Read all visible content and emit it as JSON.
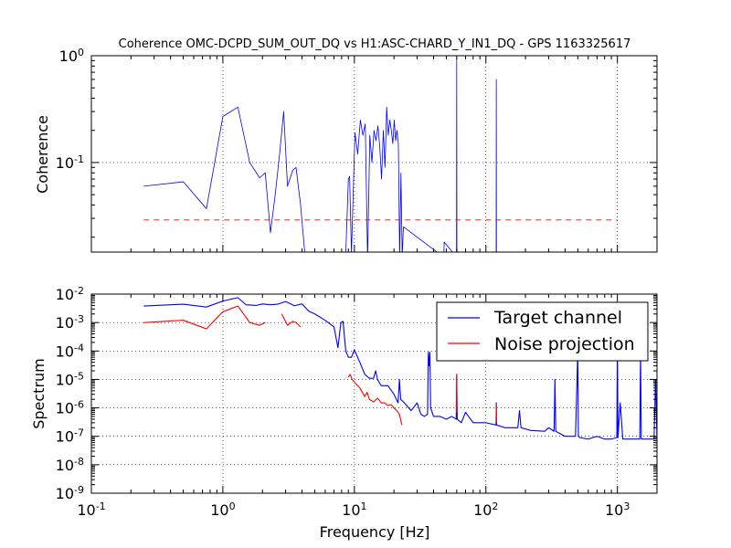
{
  "chart_data": [
    {
      "type": "line",
      "title": "Coherence OMC-DCPD_SUM_OUT_DQ vs H1:ASC-CHARD_Y_IN1_DQ - GPS 1163325617",
      "xlabel": "",
      "ylabel": "Coherence",
      "xscale": "log",
      "yscale": "log",
      "xlim": [
        0.1,
        2000
      ],
      "ylim": [
        0.0145,
        1.0
      ],
      "grid": true,
      "ytick_labels": [
        {
          "value": 0.1,
          "base": "10",
          "exp": "-1"
        },
        {
          "value": 1,
          "base": "10",
          "exp": "0"
        }
      ],
      "series": [
        {
          "color": "#0000ff",
          "x": [
            0.25,
            0.5,
            0.75,
            1.0,
            1.3,
            1.6,
            1.9,
            2.1,
            2.3,
            2.5,
            2.7,
            2.9,
            3.1,
            3.4,
            3.6,
            3.9,
            4.2,
            8.6,
            9.0,
            9.2,
            9.5,
            10.1,
            10.6,
            11.1,
            11.6,
            12.1,
            12.6,
            13.1,
            13.6,
            14.1,
            14.6,
            15.1,
            15.6,
            16.1,
            16.6,
            17.1,
            17.6,
            18.1,
            18.6,
            19.1,
            19.6,
            20.1,
            20.6,
            21.1,
            21.6,
            22.1,
            22.6,
            23.1,
            23.6,
            47.8,
            48.2,
            59.8,
            60.0,
            60.2,
            119.7,
            120.0,
            120.3
          ],
          "y": [
            0.06,
            0.066,
            0.037,
            0.27,
            0.33,
            0.1,
            0.072,
            0.08,
            0.022,
            0.05,
            0.12,
            0.3,
            0.06,
            0.085,
            0.09,
            0.04,
            0.014,
            0.014,
            0.07,
            0.074,
            0.014,
            0.19,
            0.12,
            0.25,
            0.18,
            0.23,
            0.012,
            0.18,
            0.1,
            0.2,
            0.16,
            0.22,
            0.14,
            0.07,
            0.2,
            0.09,
            0.33,
            0.18,
            0.25,
            0.2,
            0.15,
            0.25,
            0.16,
            0.2,
            0.15,
            0.013,
            0.08,
            0.013,
            0.025,
            0.013,
            0.018,
            0.013,
            0.95,
            0.013,
            0.013,
            0.6,
            0.013
          ]
        },
        {
          "color": "#ff0000",
          "style": "dashed",
          "x": [
            0.25,
            1000
          ],
          "y": [
            0.029,
            0.029
          ]
        }
      ]
    },
    {
      "type": "line",
      "title": "",
      "xlabel": "Frequency [Hz]",
      "ylabel": "Spectrum",
      "xscale": "log",
      "yscale": "log",
      "xlim": [
        0.1,
        2000
      ],
      "ylim": [
        1e-09,
        0.01
      ],
      "grid": true,
      "legend": "top-right",
      "xtick_labels": [
        {
          "value": 0.1,
          "base": "10",
          "exp": "-1"
        },
        {
          "value": 1,
          "base": "10",
          "exp": "0"
        },
        {
          "value": 10,
          "base": "10",
          "exp": "1"
        },
        {
          "value": 100,
          "base": "10",
          "exp": "2"
        },
        {
          "value": 1000,
          "base": "10",
          "exp": "3"
        }
      ],
      "ytick_labels": [
        {
          "value": 1e-09,
          "base": "10",
          "exp": "-9"
        },
        {
          "value": 1e-08,
          "base": "10",
          "exp": "-8"
        },
        {
          "value": 1e-07,
          "base": "10",
          "exp": "-7"
        },
        {
          "value": 1e-06,
          "base": "10",
          "exp": "-6"
        },
        {
          "value": 1e-05,
          "base": "10",
          "exp": "-5"
        },
        {
          "value": 0.0001,
          "base": "10",
          "exp": "-4"
        },
        {
          "value": 0.001,
          "base": "10",
          "exp": "-3"
        },
        {
          "value": 0.01,
          "base": "10",
          "exp": "-2"
        }
      ],
      "series": [
        {
          "name": "Target channel",
          "color": "#0000ff",
          "x": [
            0.25,
            0.5,
            0.75,
            1.0,
            1.3,
            1.5,
            1.8,
            2.0,
            2.3,
            2.6,
            3.0,
            3.5,
            4.0,
            4.5,
            5.0,
            6.0,
            7.0,
            7.5,
            7.9,
            8.2,
            8.6,
            9.0,
            9.5,
            10.0,
            11.0,
            12.0,
            13.0,
            14.0,
            14.5,
            15.0,
            16.0,
            18.0,
            20.0,
            21.5,
            22.0,
            22.5,
            24.0,
            27.0,
            30.0,
            32.0,
            34.0,
            36.0,
            36.5,
            37.0,
            37.5,
            38.0,
            40.0,
            45.0,
            50.0,
            55.0,
            59.5,
            60.0,
            60.5,
            65.0,
            70.0,
            80.0,
            100.0,
            119.5,
            120.0,
            120.5,
            140.0,
            175.0,
            180.0,
            185.0,
            220.0,
            280.0,
            300.0,
            330.0,
            335.0,
            340.0,
            400.0,
            480.0,
            500.0,
            505.0,
            520.0,
            600.0,
            700.0,
            800.0,
            900.0,
            990.0,
            1000.0,
            1010.0,
            1050.0,
            1100.0,
            1200.0,
            1400.0,
            1480.0,
            1500.0,
            1520.0,
            1700.0,
            1800.0,
            1900.0,
            1950.0,
            2000.0
          ],
          "y": [
            0.0038,
            0.0044,
            0.0035,
            0.0057,
            0.0075,
            0.0042,
            0.004,
            0.0045,
            0.0042,
            0.0044,
            0.0055,
            0.0039,
            0.0045,
            0.0025,
            0.002,
            0.0012,
            0.0007,
            0.00013,
            0.001,
            0.0011,
            0.0001,
            6e-05,
            6e-05,
            0.00011,
            4e-05,
            1.5e-05,
            1.1e-05,
            1.1e-05,
            2e-05,
            1e-05,
            6e-06,
            6e-06,
            3e-06,
            1.5e-06,
            1e-05,
            2e-06,
            1.5e-06,
            8e-07,
            1.5e-06,
            6e-07,
            5e-07,
            6e-07,
            9e-05,
            3e-05,
            9e-05,
            1e-06,
            5e-07,
            5e-07,
            4e-07,
            5e-07,
            4e-07,
            1.5e-05,
            4e-07,
            3e-07,
            7e-07,
            3e-07,
            3e-07,
            2.5e-07,
            1.5e-06,
            2.5e-07,
            2e-07,
            2e-07,
            8e-07,
            2e-07,
            1.6e-07,
            1.5e-07,
            2e-07,
            1.5e-07,
            1e-05,
            1.5e-07,
            1e-07,
            1e-07,
            0.0001,
            1e-07,
            9e-08,
            8e-08,
            1e-07,
            8e-08,
            8e-08,
            9e-08,
            0.0003,
            9e-08,
            1.5e-06,
            8e-08,
            8e-08,
            8e-08,
            8e-08,
            0.0001,
            8e-08,
            8e-08,
            8e-08,
            8e-08,
            1e-05,
            8e-08
          ]
        },
        {
          "name": "Noise projection",
          "color": "#ff0000",
          "segments": [
            {
              "x": [
                0.25,
                0.5,
                0.75,
                1.0,
                1.3,
                1.6,
                1.9,
                2.1
              ],
              "y": [
                0.001,
                0.0012,
                0.0006,
                0.0024,
                0.0038,
                0.001,
                0.0008,
                0.001
              ]
            },
            {
              "x": [
                2.8,
                3.1,
                3.4,
                3.6,
                3.9
              ],
              "y": [
                0.002,
                0.0008,
                0.0011,
                0.001,
                0.0007
              ]
            },
            {
              "x": [
                9.0,
                9.3,
                9.6,
                10.0,
                11.0,
                12.0,
                12.5,
                13.0,
                14.0,
                15.0,
                16.0,
                17.0,
                18.0,
                19.0,
                20.0,
                21.0,
                22.0,
                23.0
              ],
              "y": [
                1.2e-05,
                1.5e-05,
                1e-05,
                8e-06,
                5e-06,
                2.5e-06,
                3.5e-06,
                2e-06,
                1.6e-06,
                2.2e-06,
                1.5e-06,
                1.5e-06,
                1.2e-06,
                1.3e-06,
                1e-06,
                8e-07,
                6e-07,
                2.5e-07
              ]
            },
            {
              "x": [
                59.7,
                60.0,
                60.3
              ],
              "y": [
                7e-07,
                1.5e-05,
                7e-07
              ]
            },
            {
              "x": [
                119.7,
                120.0,
                120.3
              ],
              "y": [
                3e-07,
                1.2e-06,
                3e-07
              ]
            }
          ]
        }
      ]
    }
  ]
}
